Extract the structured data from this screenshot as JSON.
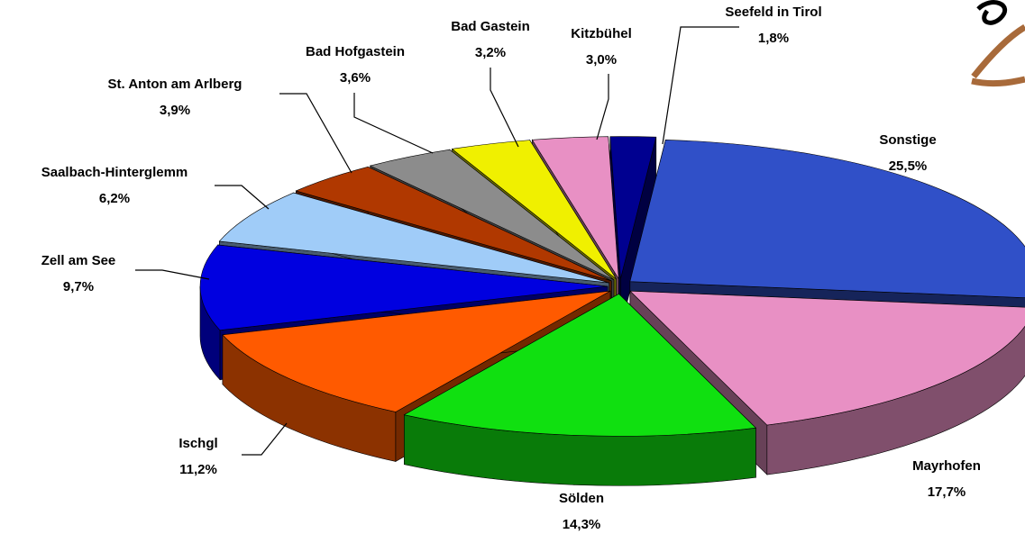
{
  "chart_data": {
    "type": "pie",
    "categories": [
      "Sonstige",
      "Mayrhofen",
      "Sölden",
      "Ischgl",
      "Zell am See",
      "Saalbach-Hinterglemm",
      "St. Anton am Arlberg",
      "Bad Hofgastein",
      "Bad Gastein",
      "Kitzbühel",
      "Seefeld in Tirol"
    ],
    "values": [
      25.5,
      17.7,
      14.3,
      11.2,
      9.7,
      6.2,
      3.9,
      3.6,
      3.2,
      3.0,
      1.8
    ],
    "value_labels": [
      "25,5%",
      "17,7%",
      "14,3%",
      "11,2%",
      "9,7%",
      "6,2%",
      "3,9%",
      "3,6%",
      "3,2%",
      "3,0%",
      "1,8%"
    ],
    "colors": [
      "#3050c8",
      "#e890c4",
      "#10e010",
      "#ff5a00",
      "#0000e0",
      "#a0ccf8",
      "#b03800",
      "#8c8c8c",
      "#f0f000",
      "#e890c4",
      "#000090"
    ]
  }
}
